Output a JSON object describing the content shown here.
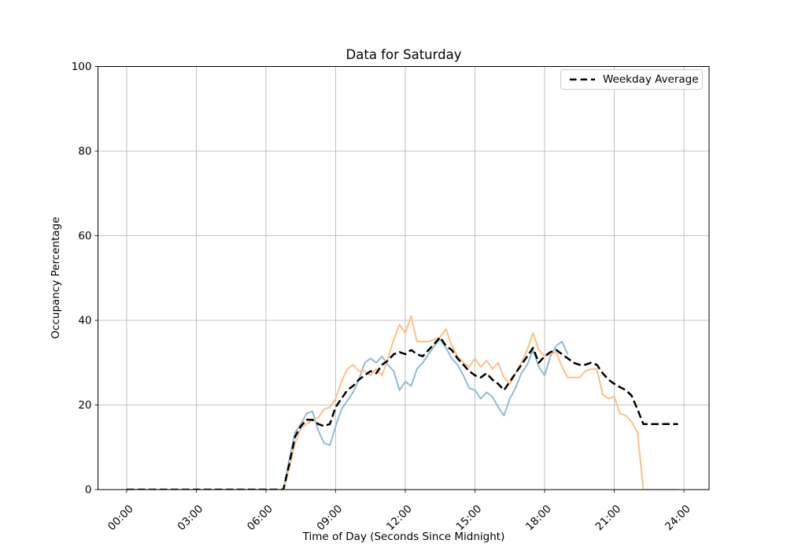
{
  "chart_data": {
    "type": "line",
    "title": "Data for Saturday",
    "xlabel": "Time of Day (Seconds Since Midnight)",
    "ylabel": "Occupancy Percentage",
    "ylim": [
      0,
      100
    ],
    "xlim_seconds": [
      0,
      86400
    ],
    "grid": true,
    "colors": {
      "grid": "#b0b0b0",
      "spine": "#000000",
      "background": "#ffffff"
    },
    "x_ticks": {
      "seconds": [
        0,
        10800,
        21600,
        32400,
        43200,
        54000,
        64800,
        75600,
        86400
      ],
      "labels": [
        "00:00",
        "03:00",
        "06:00",
        "09:00",
        "12:00",
        "15:00",
        "18:00",
        "21:00",
        "24:00"
      ]
    },
    "y_ticks": {
      "values": [
        0,
        20,
        40,
        60,
        80,
        100
      ],
      "labels": [
        "0",
        "20",
        "40",
        "60",
        "80",
        "100"
      ]
    },
    "legend": {
      "location": "upper right",
      "entries": [
        {
          "label": "Weekday Average",
          "color": "#000000",
          "line_style": "dashed"
        }
      ]
    },
    "series": [
      {
        "name": "saturday-line-1",
        "legend_label": null,
        "color": "#8fbbd9",
        "line_style": "solid",
        "x_start_seconds": 0,
        "x_step_seconds": 900,
        "values": [
          0,
          0,
          0,
          0,
          0,
          0,
          0,
          0,
          0,
          0,
          0,
          0,
          0,
          0,
          0,
          0,
          0,
          0,
          0,
          0,
          0,
          0,
          0,
          0,
          0,
          0,
          0,
          0,
          7,
          13.5,
          15.5,
          18,
          18.5,
          14,
          11,
          10.5,
          15,
          19,
          21,
          23,
          26,
          30,
          31,
          30,
          31.5,
          29.5,
          28,
          23.5,
          25.5,
          24.5,
          28.5,
          30,
          32,
          34,
          35.5,
          33.5,
          31,
          29.5,
          27,
          24,
          23.5,
          21.5,
          23,
          22,
          19.5,
          17.5,
          21.5,
          24,
          27.5,
          29.5,
          33,
          29,
          27,
          31.5,
          34,
          35,
          32
        ]
      },
      {
        "name": "saturday-line-2",
        "legend_label": null,
        "color": "#ffbf86",
        "line_style": "solid",
        "x_start_seconds": 0,
        "x_step_seconds": 900,
        "values": [
          0,
          0,
          0,
          0,
          0,
          0,
          0,
          0,
          0,
          0,
          0,
          0,
          0,
          0,
          0,
          0,
          0,
          0,
          0,
          0,
          0,
          0,
          0,
          0,
          0,
          0,
          0,
          0,
          5,
          11,
          14.5,
          15.5,
          16.5,
          17,
          19,
          19.5,
          21.5,
          25.5,
          28.5,
          29.5,
          28,
          28,
          27,
          28.5,
          27,
          31,
          35.5,
          39,
          37,
          41,
          35,
          35,
          35,
          35.5,
          36,
          38,
          34,
          31.5,
          30,
          29,
          31,
          29,
          30.5,
          28.5,
          30,
          26.5,
          25,
          27.5,
          30,
          33,
          37,
          33,
          31.5,
          32,
          32.5,
          29,
          26.5,
          26.5,
          26.5,
          28,
          28.5,
          28.5,
          22.5,
          21.5,
          22,
          18,
          17.5,
          16,
          13.5,
          0,
          0,
          0,
          0,
          0,
          0,
          0
        ]
      },
      {
        "name": "weekday-average",
        "legend_label": "Weekday Average",
        "color": "#000000",
        "line_style": "dashed",
        "x_start_seconds": 0,
        "x_step_seconds": 900,
        "values": [
          0,
          0,
          0,
          0,
          0,
          0,
          0,
          0,
          0,
          0,
          0,
          0,
          0,
          0,
          0,
          0,
          0,
          0,
          0,
          0,
          0,
          0,
          0,
          0,
          0,
          0,
          0,
          0,
          6,
          12.5,
          15,
          16.5,
          16.5,
          15.5,
          15,
          15.5,
          19.5,
          21.5,
          23.5,
          24.5,
          26,
          27,
          28,
          27.5,
          29.5,
          30.5,
          32,
          32.5,
          32,
          33,
          32,
          31.5,
          33,
          34.5,
          36,
          34,
          33,
          31,
          29.5,
          28,
          27,
          26.5,
          27.5,
          26,
          25,
          23.5,
          25.5,
          27.5,
          29.5,
          31.5,
          33.5,
          30,
          31.5,
          32.5,
          33,
          32,
          31,
          30,
          29.5,
          29.5,
          30,
          29.5,
          27.5,
          26,
          25,
          24.2,
          23.5,
          22.2,
          19,
          15.5,
          15.5,
          15.5,
          15.5,
          15.5,
          15.5,
          15.5
        ]
      }
    ]
  }
}
